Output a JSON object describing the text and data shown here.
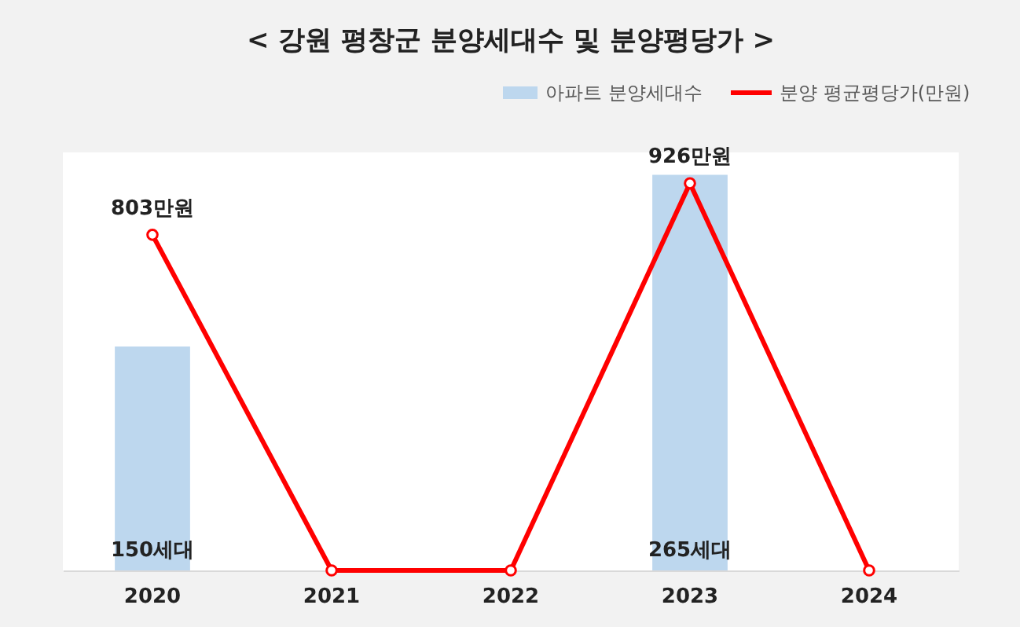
{
  "chart_data": {
    "type": "bar",
    "title": "< 강원 평창군 분양세대수 및 분양평당가 >",
    "categories": [
      "2020",
      "2021",
      "2022",
      "2023",
      "2024"
    ],
    "series": [
      {
        "name": "아파트 분양세대수",
        "color": "#bdd7ee",
        "values": [
          150,
          null,
          null,
          265,
          null
        ],
        "value_labels": [
          "150세대",
          null,
          null,
          "265세대",
          null
        ]
      },
      {
        "name": "분양 평균평당가(만원)",
        "type": "line",
        "axis": "y2",
        "color": "#ff0000",
        "values": [
          803,
          0,
          0,
          926,
          0
        ],
        "value_labels": [
          "803만원",
          null,
          null,
          "926만원",
          null
        ]
      }
    ],
    "tick_labels": "x",
    "legend": "top right",
    "marker": "circle",
    "line_style": "solid",
    "grid": false
  }
}
